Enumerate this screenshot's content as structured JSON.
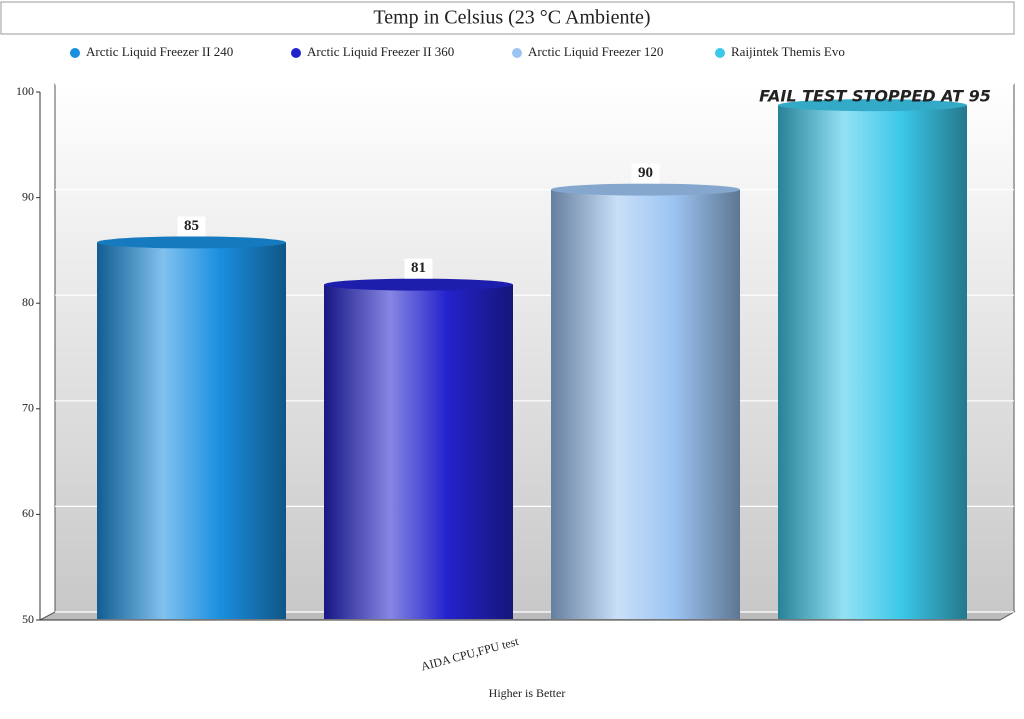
{
  "chart_data": {
    "type": "bar",
    "title": "Temp in Celsius (23 °C Ambiente)",
    "categories": [
      "AIDA CPU,FPU test"
    ],
    "x_label": "Higher is Better",
    "annotation": "FAIL TEST STOPPED AT 95",
    "series": [
      {
        "name": "Arctic Liquid Freezer II 240",
        "color": "#1a8fe0",
        "values": [
          85
        ],
        "show_value": true
      },
      {
        "name": "Arctic Liquid Freezer II 360",
        "color": "#2323cc",
        "values": [
          81
        ],
        "show_value": true
      },
      {
        "name": "Arctic Liquid Freezer 120",
        "color": "#9cc4f2",
        "values": [
          90
        ],
        "show_value": true
      },
      {
        "name": "Raijintek Themis Evo",
        "color": "#3cc8ea",
        "values": [
          98
        ],
        "show_value": false
      }
    ],
    "ylim": [
      50,
      100
    ],
    "yticks": [
      50,
      60,
      70,
      80,
      90,
      100
    ],
    "grid": true,
    "legend": "top"
  }
}
